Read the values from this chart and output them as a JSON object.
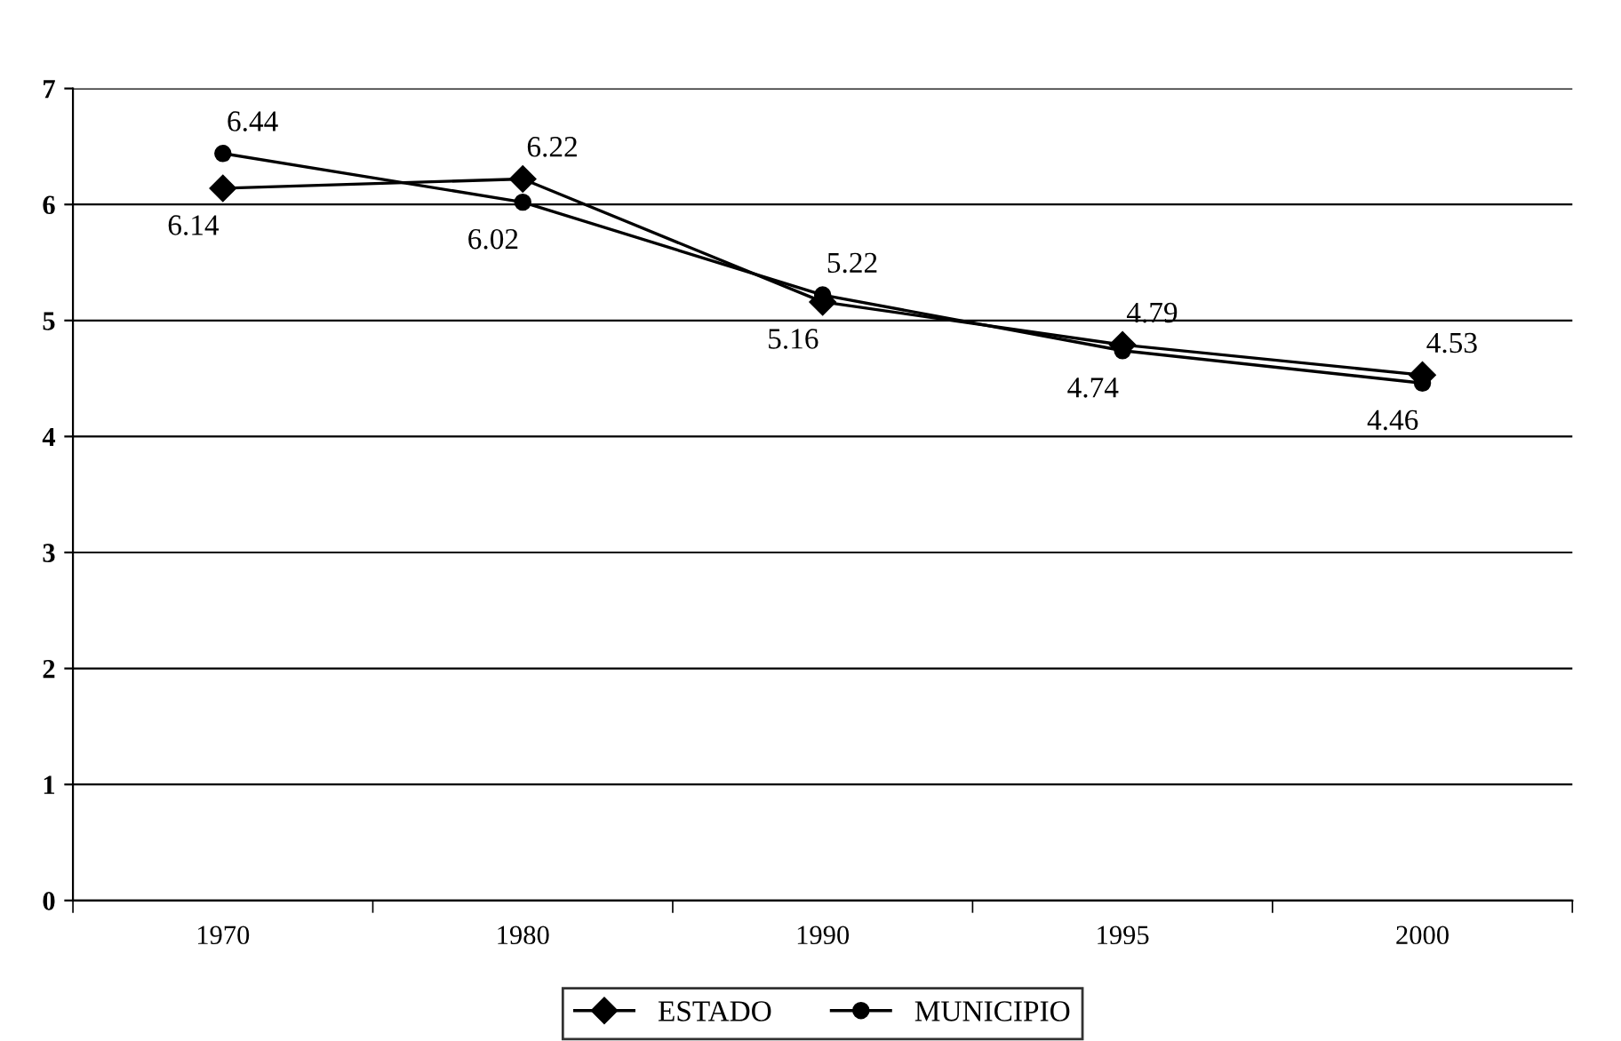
{
  "chart_data": {
    "type": "line",
    "categories": [
      "1970",
      "1980",
      "1990",
      "1995",
      "2000"
    ],
    "series": [
      {
        "name": "ESTADO",
        "color": "#000000",
        "values": [
          6.14,
          6.22,
          5.16,
          4.79,
          4.53
        ],
        "marker": "diamond"
      },
      {
        "name": "MUNICIPIO",
        "color": "#000000",
        "values": [
          6.44,
          6.02,
          5.22,
          4.74,
          4.46
        ],
        "marker": "circle"
      }
    ],
    "ylim": [
      0,
      7
    ],
    "yticks": [
      0,
      1,
      2,
      3,
      4,
      5,
      6,
      7
    ],
    "grid": "y",
    "legend": "bottom",
    "data_labels": true,
    "line_style": "solid"
  }
}
